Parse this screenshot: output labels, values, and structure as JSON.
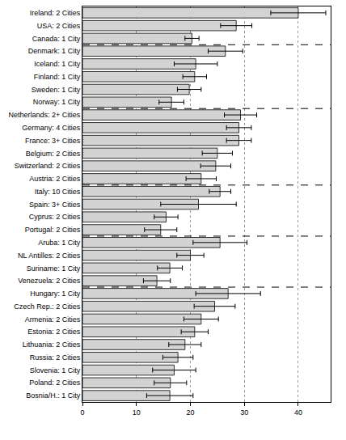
{
  "chart_data": {
    "type": "bar",
    "orientation": "horizontal",
    "color": "#d3d3d3",
    "grid": true,
    "xlim": [
      0,
      46
    ],
    "xticks": [
      0,
      10,
      20,
      30,
      40
    ],
    "groups": [
      {
        "categories": [
          "Ireland: 2 Cities",
          "USA: 2 Cities",
          "Canada: 1 City"
        ],
        "values": [
          40.0,
          28.5,
          20.3
        ],
        "errors": [
          5.1,
          2.9,
          1.3
        ]
      },
      {
        "categories": [
          "Denmark: 1 City",
          "Iceland: 1 City",
          "Finland: 1 City",
          "Sweden: 1 City",
          "Norway: 1 City"
        ],
        "values": [
          26.5,
          21.0,
          20.8,
          19.8,
          16.5
        ],
        "errors": [
          3.2,
          4.0,
          2.2,
          2.2,
          2.3
        ]
      },
      {
        "categories": [
          "Netherlands: 2+ Cities",
          "Germany: 4 Cities",
          "France: 3+ Cities",
          "Belgium: 2 Cities",
          "Switzerland: 2 Cities",
          "Austria: 2 Cities"
        ],
        "values": [
          29.3,
          29.0,
          29.0,
          25.0,
          24.7,
          22.0
        ],
        "errors": [
          3.0,
          2.3,
          2.3,
          2.8,
          2.8,
          2.8
        ]
      },
      {
        "categories": [
          "Italy: 10 Cities",
          "Spain: 3+ Cities",
          "Cyprus: 2 Cities",
          "Portugal: 2 Cities"
        ],
        "values": [
          25.5,
          21.5,
          15.5,
          14.5
        ],
        "errors": [
          2.0,
          7.0,
          2.2,
          3.0
        ]
      },
      {
        "categories": [
          "Aruba: 1 City",
          "NL Antilles: 2 Cities",
          "Suriname: 1 City",
          "Venezuela: 2 Cities"
        ],
        "values": [
          25.5,
          20.0,
          16.2,
          13.8
        ],
        "errors": [
          5.0,
          2.5,
          2.3,
          2.5
        ]
      },
      {
        "categories": [
          "Hungary: 1 City",
          "Czech Rep.: 2 Cities",
          "Armenia: 2 Cities",
          "Estonia: 2 Cities",
          "Lithuania: 2 Cities",
          "Russia: 2 Cities",
          "Slovenia: 1 City",
          "Poland: 2 Cities",
          "Bosnia/H.: 1 City"
        ],
        "values": [
          27.0,
          24.5,
          22.0,
          20.8,
          19.0,
          17.7,
          17.0,
          16.3,
          16.2
        ],
        "errors": [
          6.0,
          3.8,
          3.2,
          2.5,
          3.0,
          2.8,
          4.0,
          3.0,
          4.3
        ]
      }
    ]
  }
}
